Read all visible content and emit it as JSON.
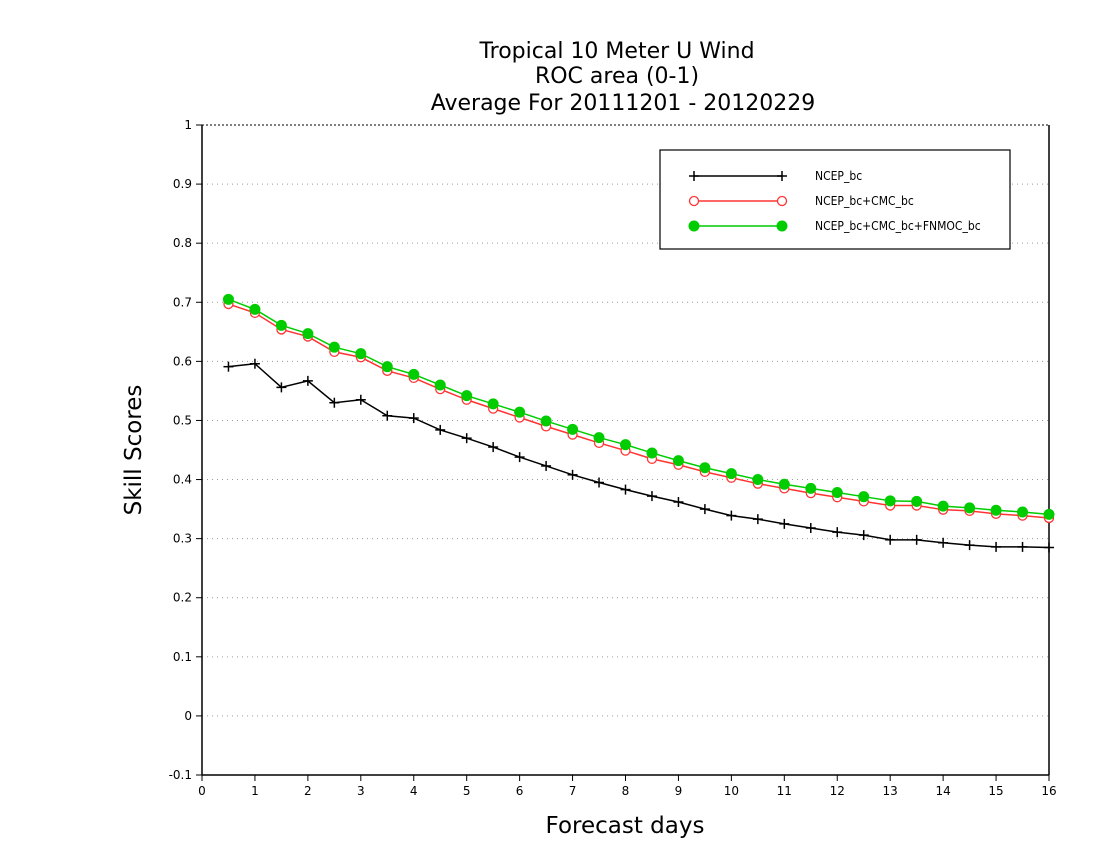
{
  "chart_data": {
    "type": "line",
    "title": [
      "Tropical 10 Meter U Wind",
      "ROC area (0-1)",
      "Average For 20111201 - 20120229"
    ],
    "xlabel": "Forecast days",
    "ylabel": "Skill Scores",
    "xlim": [
      0,
      16
    ],
    "ylim": [
      -0.1,
      1
    ],
    "x_ticks": [
      0,
      1,
      2,
      3,
      4,
      5,
      6,
      7,
      8,
      9,
      10,
      11,
      12,
      13,
      14,
      15,
      16
    ],
    "x_tick_labels": [
      "0",
      "1",
      "2",
      "3",
      "4",
      "5",
      "6",
      "7",
      "8",
      "9",
      "10",
      "11",
      "12",
      "13",
      "14",
      "15",
      "16"
    ],
    "y_ticks": [
      -0.1,
      0,
      0.1,
      0.2,
      0.3,
      0.4,
      0.5,
      0.6,
      0.7,
      0.8,
      0.9,
      1
    ],
    "y_tick_labels": [
      "-0.1",
      "0",
      "0.1",
      "0.2",
      "0.3",
      "0.4",
      "0.5",
      "0.6",
      "0.7",
      "0.8",
      "0.9",
      "1"
    ],
    "grid": "horizontal dotted",
    "legend_position": "top-right",
    "x": [
      0.5,
      1,
      1.5,
      2,
      2.5,
      3,
      3.5,
      4,
      4.5,
      5,
      5.5,
      6,
      6.5,
      7,
      7.5,
      8,
      8.5,
      9,
      9.5,
      10,
      10.5,
      11,
      11.5,
      12,
      12.5,
      13,
      13.5,
      14,
      14.5,
      15,
      15.5,
      16
    ],
    "series": [
      {
        "name": "NCEP_bc",
        "color": "#000000",
        "marker": "plus",
        "values": [
          0.591,
          0.596,
          0.556,
          0.567,
          0.53,
          0.535,
          0.508,
          0.504,
          0.484,
          0.47,
          0.455,
          0.438,
          0.423,
          0.408,
          0.395,
          0.383,
          0.372,
          0.362,
          0.35,
          0.339,
          0.333,
          0.325,
          0.318,
          0.311,
          0.306,
          0.298,
          0.298,
          0.293,
          0.289,
          0.286,
          0.286,
          0.285
        ]
      },
      {
        "name": "NCEP_bc+CMC_bc",
        "color": "#ff3333",
        "marker": "open-circle",
        "values": [
          0.697,
          0.682,
          0.654,
          0.642,
          0.616,
          0.607,
          0.584,
          0.572,
          0.553,
          0.535,
          0.52,
          0.505,
          0.49,
          0.476,
          0.462,
          0.449,
          0.435,
          0.425,
          0.413,
          0.403,
          0.393,
          0.385,
          0.377,
          0.37,
          0.363,
          0.356,
          0.356,
          0.349,
          0.347,
          0.342,
          0.339,
          0.335
        ]
      },
      {
        "name": "NCEP_bc+CMC_bc+FNMOC_bc",
        "color": "#00cc00",
        "marker": "filled-circle",
        "values": [
          0.705,
          0.688,
          0.661,
          0.647,
          0.624,
          0.613,
          0.591,
          0.578,
          0.56,
          0.542,
          0.528,
          0.514,
          0.499,
          0.485,
          0.471,
          0.459,
          0.445,
          0.432,
          0.42,
          0.41,
          0.4,
          0.392,
          0.385,
          0.378,
          0.371,
          0.364,
          0.363,
          0.355,
          0.352,
          0.348,
          0.345,
          0.341
        ]
      }
    ]
  }
}
